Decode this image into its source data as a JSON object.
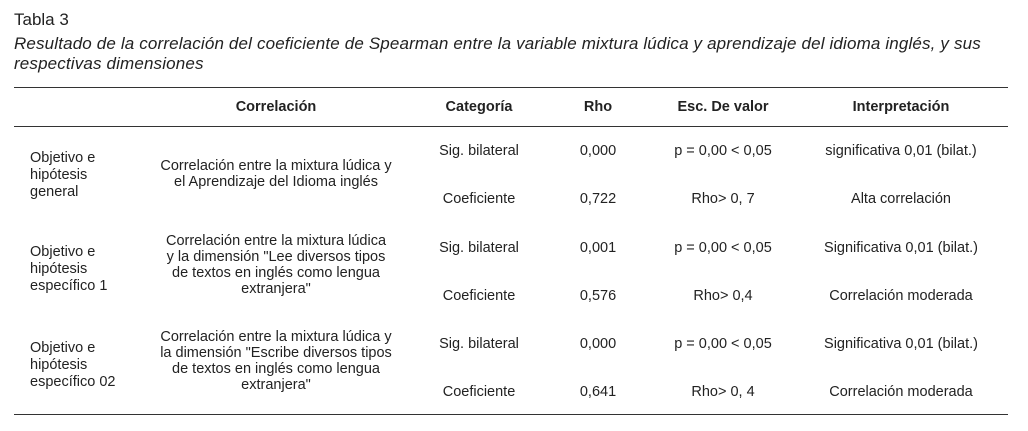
{
  "table": {
    "label": "Tabla 3",
    "caption": "Resultado de la correlación del coeficiente de Spearman entre la variable mixtura lúdica y aprendizaje del idioma inglés, y sus respectivas dimensiones",
    "headers": {
      "correlacion": "Correlación",
      "categoria": "Categoría",
      "rho": "Rho",
      "esc": "Esc. De valor",
      "interp": "Interpretación"
    },
    "groups": [
      {
        "objetivo": [
          "Objetivo e",
          "hipótesis",
          "general"
        ],
        "correlacion": [
          "Correlación entre la mixtura lúdica y",
          "el Aprendizaje del Idioma inglés"
        ],
        "rows": [
          {
            "categoria": "Sig. bilateral",
            "rho": "0,000",
            "esc": "p = 0,00 < 0,05",
            "interp": "significativa 0,01 (bilat.)"
          },
          {
            "categoria": "Coeficiente",
            "rho": "0,722",
            "esc": "Rho> 0, 7",
            "interp": "Alta correlación"
          }
        ]
      },
      {
        "objetivo": [
          "Objetivo e",
          "hipótesis",
          "específico 1"
        ],
        "correlacion": [
          "Correlación entre la mixtura lúdica",
          "y la dimensión \"Lee diversos tipos",
          "de textos en inglés como lengua",
          "extranjera\""
        ],
        "rows": [
          {
            "categoria": "Sig. bilateral",
            "rho": "0,001",
            "esc": "p = 0,00 < 0,05",
            "interp": "Significativa 0,01 (bilat.)"
          },
          {
            "categoria": "Coeficiente",
            "rho": "0,576",
            "esc": "Rho> 0,4",
            "interp": "Correlación moderada"
          }
        ]
      },
      {
        "objetivo": [
          "Objetivo e",
          "hipótesis",
          "específico 02"
        ],
        "correlacion": [
          "Correlación entre la mixtura lúdica y",
          "la dimensión \"Escribe diversos tipos",
          "de textos en inglés como lengua",
          "extranjera\""
        ],
        "rows": [
          {
            "categoria": "Sig. bilateral",
            "rho": "0,000",
            "esc": "p = 0,00 < 0,05",
            "interp": "Significativa 0,01 (bilat.)"
          },
          {
            "categoria": "Coeficiente",
            "rho": "0,641",
            "esc": "Rho> 0, 4",
            "interp": "Correlación moderada"
          }
        ]
      }
    ]
  }
}
